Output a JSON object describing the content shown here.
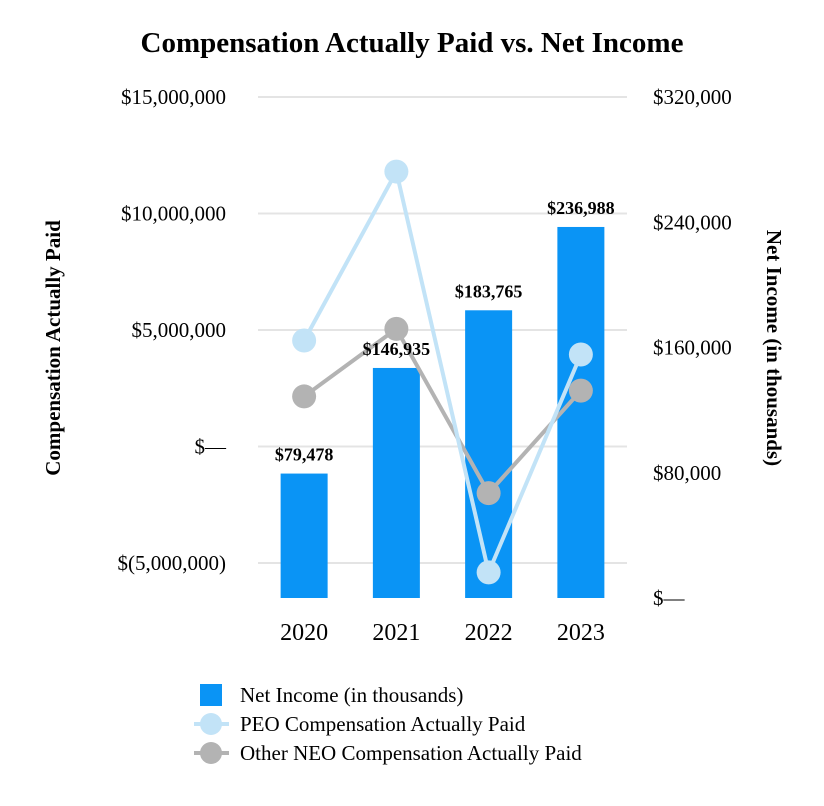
{
  "chart_data": {
    "type": "bar+line",
    "title": "Compensation Actually Paid vs. Net Income",
    "categories": [
      "2020",
      "2021",
      "2022",
      "2023"
    ],
    "left_axis": {
      "label": "Compensation Actually Paid",
      "range": [
        -6500000,
        15000000
      ],
      "ticks": [
        15000000,
        10000000,
        5000000,
        0,
        -5000000
      ],
      "tick_labels": [
        "$15,000,000",
        "$10,000,000",
        "$5,000,000",
        "$—",
        "$(5,000,000)"
      ]
    },
    "right_axis": {
      "label": "Net Income (in thousands)",
      "range": [
        0,
        320000
      ],
      "ticks": [
        320000,
        240000,
        160000,
        80000,
        0
      ],
      "tick_labels": [
        "$320,000",
        "$240,000",
        "$160,000",
        "$80,000",
        "$—"
      ]
    },
    "series": [
      {
        "name": "Net Income (in thousands)",
        "type": "bar",
        "axis": "right",
        "color": "#0a94f5",
        "values": [
          79478,
          146935,
          183765,
          236988
        ],
        "data_labels": [
          "$79,478",
          "$146,935",
          "$183,765",
          "$236,988"
        ]
      },
      {
        "name": "PEO Compensation Actually Paid",
        "type": "line",
        "axis": "left",
        "color": "#c2e3f7",
        "values": [
          4550000,
          11800000,
          -5400000,
          3950000
        ]
      },
      {
        "name": "Other NEO Compensation Actually Paid",
        "type": "line",
        "axis": "left",
        "color": "#b3b3b3",
        "values": [
          2150000,
          5050000,
          -2000000,
          2400000
        ]
      }
    ],
    "gridlines": true,
    "legend_position": "bottom"
  }
}
